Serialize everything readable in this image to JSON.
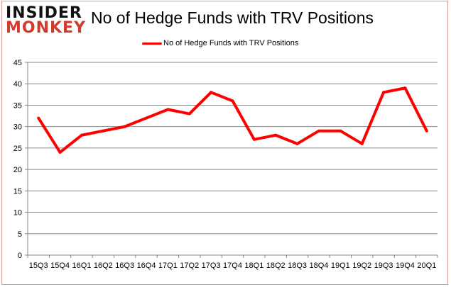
{
  "logo": {
    "line1": "INSIDER",
    "line2": "MONKEY"
  },
  "chart_data": {
    "type": "line",
    "title": "No of Hedge Funds with TRV Positions",
    "xlabel": "",
    "ylabel": "",
    "categories": [
      "15Q3",
      "15Q4",
      "16Q1",
      "16Q2",
      "16Q3",
      "16Q4",
      "17Q1",
      "17Q2",
      "17Q3",
      "17Q4",
      "18Q1",
      "18Q2",
      "18Q3",
      "18Q4",
      "19Q1",
      "19Q2",
      "19Q3",
      "19Q4",
      "20Q1"
    ],
    "series": [
      {
        "name": "No of Hedge Funds with TRV Positions",
        "color": "#ff0000",
        "values": [
          32,
          24,
          28,
          29,
          30,
          32,
          34,
          33,
          38,
          36,
          27,
          28,
          26,
          29,
          29,
          26,
          38,
          39,
          29
        ]
      }
    ],
    "ylim": [
      0,
      45
    ],
    "yticks": [
      0,
      5,
      10,
      15,
      20,
      25,
      30,
      35,
      40,
      45
    ],
    "grid": true,
    "legend": "top-center"
  }
}
